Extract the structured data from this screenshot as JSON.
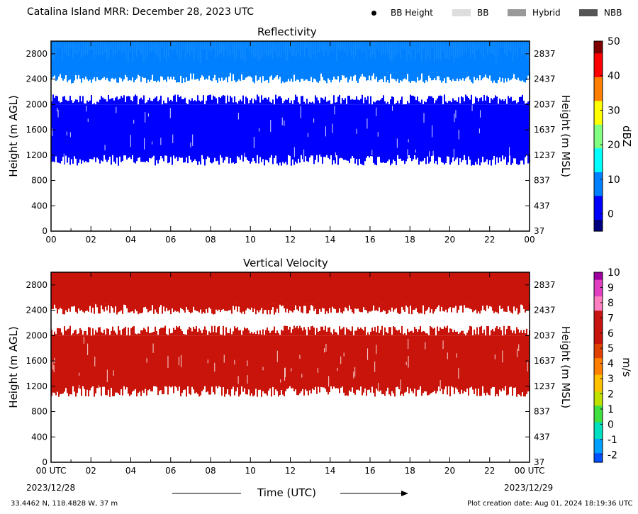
{
  "header": {
    "title": "Catalina Island MRR:  December 28, 2023 UTC",
    "legend": [
      {
        "label": "BB Height",
        "kind": "dot",
        "color": "#000000"
      },
      {
        "label": "BB",
        "kind": "swatch",
        "color": "#dddddd"
      },
      {
        "label": "Hybrid",
        "kind": "swatch",
        "color": "#999999"
      },
      {
        "label": "NBB",
        "kind": "swatch",
        "color": "#555555"
      }
    ]
  },
  "x_axis": {
    "ticks": [
      "00",
      "02",
      "04",
      "06",
      "08",
      "10",
      "12",
      "14",
      "16",
      "18",
      "20",
      "22",
      "00"
    ],
    "ticks_bottom": [
      "00 UTC",
      "02",
      "04",
      "06",
      "08",
      "10",
      "12",
      "14",
      "16",
      "18",
      "20",
      "22",
      "00 UTC"
    ],
    "start_date": "2023/12/28",
    "end_date": "2023/12/29",
    "label": "Time (UTC)"
  },
  "footer": {
    "location": "33.4462 N, 118.4828 W, 37 m",
    "creation": "Plot creation date: Aug 01, 2024 18:19:36 UTC"
  },
  "chart_data": [
    {
      "type": "heatmap",
      "title": "Reflectivity",
      "ylabel": "Height (m AGL)",
      "y2label": "Height (m MSL)",
      "x_range_hours": [
        0,
        24
      ],
      "ylim": [
        0,
        3000
      ],
      "yticks_agl": [
        0,
        400,
        800,
        1200,
        1600,
        2000,
        2400,
        2800
      ],
      "yticks_msl": [
        37,
        437,
        837,
        1237,
        1637,
        2037,
        2437,
        2837
      ],
      "layers": [
        {
          "bottom_m": 1200,
          "top_m": 2000,
          "value": 0,
          "note_color": "#0a14ff"
        },
        {
          "bottom_m": 2500,
          "top_m": 3000,
          "value": 6,
          "note_color": "#0a78ff"
        }
      ],
      "colorbar": {
        "label": "dBZ",
        "min": -5,
        "max": 50,
        "ticks": [
          0,
          10,
          20,
          30,
          40,
          50
        ],
        "colors": [
          "#00007f",
          "#0000ff",
          "#0080ff",
          "#00ffff",
          "#80ff80",
          "#ffff00",
          "#ff8000",
          "#ff0000",
          "#7f0000"
        ]
      }
    },
    {
      "type": "heatmap",
      "title": "Vertical Velocity",
      "ylabel": "Height (m AGL)",
      "y2label": "Height (m MSL)",
      "x_range_hours": [
        0,
        24
      ],
      "ylim": [
        0,
        3000
      ],
      "yticks_agl": [
        0,
        400,
        800,
        1200,
        1600,
        2000,
        2400,
        2800
      ],
      "yticks_msl": [
        37,
        437,
        837,
        1237,
        1637,
        2037,
        2437,
        2837
      ],
      "layers": [
        {
          "bottom_m": 1200,
          "top_m": 2000,
          "value": 6,
          "note_color": "#c8140a"
        },
        {
          "bottom_m": 2500,
          "top_m": 3000,
          "value": 6,
          "note_color": "#c8140a"
        }
      ],
      "colorbar": {
        "label": "m/s",
        "min": -2.5,
        "max": 10,
        "ticks": [
          -2,
          -1,
          0,
          1,
          2,
          3,
          4,
          5,
          6,
          7,
          8,
          9,
          10
        ],
        "colors": [
          "#0050ff",
          "#00a0ff",
          "#00e0c0",
          "#40e040",
          "#c0e000",
          "#ffc000",
          "#ff8000",
          "#e04000",
          "#c8140a",
          "#c81410",
          "#ff80c0",
          "#e040c0",
          "#a000a0"
        ]
      }
    }
  ]
}
